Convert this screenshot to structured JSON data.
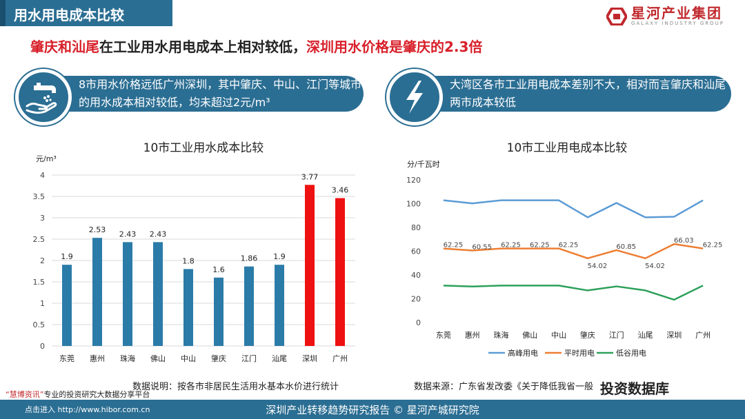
{
  "header": {
    "title": "用水用电成本比较",
    "logo_cn": "星河产业集团",
    "logo_en": "GALAXY INDUSTRY GROUP"
  },
  "subtitle": {
    "red1": "肇庆和汕尾",
    "black": "在工业用水用电成本上相对较低，",
    "red2": "深圳用水价格是肇庆的2.3倍"
  },
  "info": {
    "water_text": "8市用水价格远低广州深圳，其中肇庆、中山、江门等城市的用水成本相对较低，均未超过2元/m³",
    "power_text": "大湾区各市工业用电成本差别不大，相对而言肇庆和汕尾两市成本较低"
  },
  "chart_data": [
    {
      "type": "bar",
      "title": "10市工业用水成本比较",
      "ylabel": "元/m³",
      "ylim": [
        0,
        4
      ],
      "yticks": [
        0,
        0.5,
        1,
        1.5,
        2,
        2.5,
        3,
        3.5,
        4
      ],
      "ytick_labels": [
        "0",
        "0.5",
        "1",
        "1.5",
        "2",
        "2.5",
        "3",
        "3.5",
        "4"
      ],
      "categories": [
        "东莞",
        "惠州",
        "珠海",
        "佛山",
        "中山",
        "肇庆",
        "江门",
        "汕尾",
        "深圳",
        "广州"
      ],
      "values": [
        1.9,
        2.53,
        2.43,
        2.43,
        1.8,
        1.6,
        1.86,
        1.9,
        3.77,
        3.46
      ],
      "value_labels": [
        "1.9",
        "2.53",
        "2.43",
        "2.43",
        "1.8",
        "1.6",
        "1.86",
        "1.9",
        "3.77",
        "3.46"
      ],
      "colors": [
        "#2b7ba8",
        "#2b7ba8",
        "#2b7ba8",
        "#2b7ba8",
        "#2b7ba8",
        "#2b7ba8",
        "#2b7ba8",
        "#2b7ba8",
        "#ee1111",
        "#ee1111"
      ],
      "grid": true
    },
    {
      "type": "line",
      "title": "10市工业用电成本比较",
      "ylabel": "分/千瓦时",
      "ylim": [
        0,
        120
      ],
      "yticks": [
        0,
        20,
        40,
        60,
        80,
        100,
        120
      ],
      "ytick_labels": [
        "0",
        "20",
        "40",
        "60",
        "80",
        "100",
        "120"
      ],
      "categories": [
        "东莞",
        "惠州",
        "珠海",
        "佛山",
        "中山",
        "肇庆",
        "江门",
        "汕尾",
        "深圳",
        "广州"
      ],
      "legend_position": "bottom",
      "series": [
        {
          "name": "高峰用电",
          "color": "#5b9bd5",
          "values": [
            102.8,
            100.2,
            102.8,
            102.8,
            102.8,
            88.5,
            100.6,
            88.5,
            89,
            102.8
          ],
          "labels": []
        },
        {
          "name": "平时用电",
          "color": "#ed7d31",
          "values": [
            62.25,
            60.55,
            62.25,
            62.25,
            62.25,
            54.02,
            60.85,
            54.02,
            66.03,
            62.25
          ],
          "labels": [
            "62.25",
            "60.55",
            "62.25",
            "62.25",
            "62.25",
            "54.02",
            "60.85",
            "54.02",
            "66.03",
            "62.25"
          ]
        },
        {
          "name": "低谷用电",
          "color": "#2ca05a",
          "values": [
            31.1,
            30.3,
            31.1,
            31.1,
            31.1,
            27,
            30.4,
            27,
            19.2,
            31.1
          ],
          "labels": []
        }
      ],
      "grid": false
    }
  ],
  "notes": {
    "water": "数据说明：按各市非居民生活用水基本水价进行统计",
    "power": "数据来源：广东省发改委《关于降低我省一般"
  },
  "footer": {
    "text": "深圳产业转移趋势研究报告 © 星河产城研究院",
    "ad_line1_hl": "“慧博资讯”",
    "ad_line1": "专业的投资研究大数据分享平台",
    "ad_line2": "点击进入 http://www.hibor.com.cn",
    "wechat": "投资数据库"
  }
}
